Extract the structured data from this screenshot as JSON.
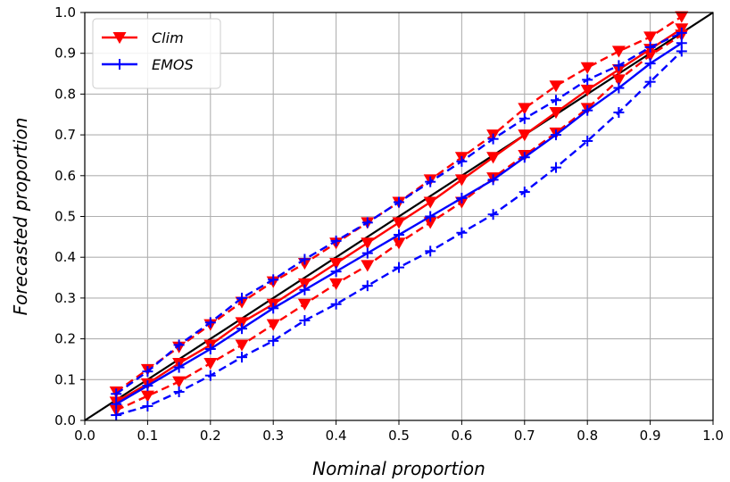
{
  "chart_data": {
    "type": "line",
    "title": "",
    "xlabel": "Nominal proportion",
    "ylabel": "Forecasted proportion",
    "xlim": [
      0.0,
      1.0
    ],
    "ylim": [
      0.0,
      1.0
    ],
    "xticks": [
      "0.0",
      "0.1",
      "0.2",
      "0.3",
      "0.4",
      "0.5",
      "0.6",
      "0.7",
      "0.8",
      "0.9",
      "1.0"
    ],
    "yticks": [
      "0.0",
      "0.1",
      "0.2",
      "0.3",
      "0.4",
      "0.5",
      "0.6",
      "0.7",
      "0.8",
      "0.9",
      "1.0"
    ],
    "grid": true,
    "legend_position": "top-left",
    "reference_line": {
      "x": [
        0,
        1
      ],
      "y": [
        0,
        1
      ],
      "color": "#000000"
    },
    "x": [
      0.05,
      0.1,
      0.15,
      0.2,
      0.25,
      0.3,
      0.35,
      0.4,
      0.45,
      0.5,
      0.55,
      0.6,
      0.65,
      0.7,
      0.75,
      0.8,
      0.85,
      0.9,
      0.95
    ],
    "series": [
      {
        "name": "Clim",
        "color": "#ff0000",
        "marker": "triangle-down",
        "style": "solid",
        "legend": true,
        "values": [
          0.045,
          0.09,
          0.14,
          0.185,
          0.24,
          0.285,
          0.335,
          0.385,
          0.435,
          0.485,
          0.535,
          0.59,
          0.645,
          0.7,
          0.755,
          0.81,
          0.86,
          0.91,
          0.96
        ]
      },
      {
        "name": "",
        "color": "#ff0000",
        "marker": "triangle-down",
        "style": "dashed",
        "legend": false,
        "values": [
          0.07,
          0.125,
          0.18,
          0.235,
          0.29,
          0.34,
          0.385,
          0.435,
          0.485,
          0.535,
          0.59,
          0.645,
          0.7,
          0.765,
          0.82,
          0.865,
          0.905,
          0.94,
          0.99
        ]
      },
      {
        "name": "",
        "color": "#ff0000",
        "marker": "triangle-down",
        "style": "dashed",
        "legend": false,
        "values": [
          0.025,
          0.06,
          0.095,
          0.14,
          0.185,
          0.235,
          0.285,
          0.335,
          0.38,
          0.435,
          0.485,
          0.535,
          0.595,
          0.65,
          0.705,
          0.765,
          0.835,
          0.895,
          0.945
        ]
      },
      {
        "name": "EMOS",
        "color": "#0000ff",
        "marker": "plus",
        "style": "solid",
        "legend": true,
        "values": [
          0.04,
          0.085,
          0.13,
          0.175,
          0.225,
          0.275,
          0.32,
          0.365,
          0.41,
          0.455,
          0.5,
          0.545,
          0.59,
          0.645,
          0.7,
          0.76,
          0.815,
          0.875,
          0.925
        ]
      },
      {
        "name": "",
        "color": "#0000ff",
        "marker": "plus",
        "style": "dashed",
        "legend": false,
        "values": [
          0.065,
          0.12,
          0.185,
          0.24,
          0.3,
          0.345,
          0.395,
          0.44,
          0.485,
          0.535,
          0.585,
          0.635,
          0.69,
          0.74,
          0.785,
          0.835,
          0.87,
          0.915,
          0.95
        ]
      },
      {
        "name": "",
        "color": "#0000ff",
        "marker": "plus",
        "style": "dashed",
        "legend": false,
        "values": [
          0.013,
          0.035,
          0.07,
          0.11,
          0.155,
          0.195,
          0.245,
          0.285,
          0.33,
          0.375,
          0.415,
          0.46,
          0.505,
          0.56,
          0.62,
          0.685,
          0.755,
          0.83,
          0.905
        ]
      }
    ]
  }
}
